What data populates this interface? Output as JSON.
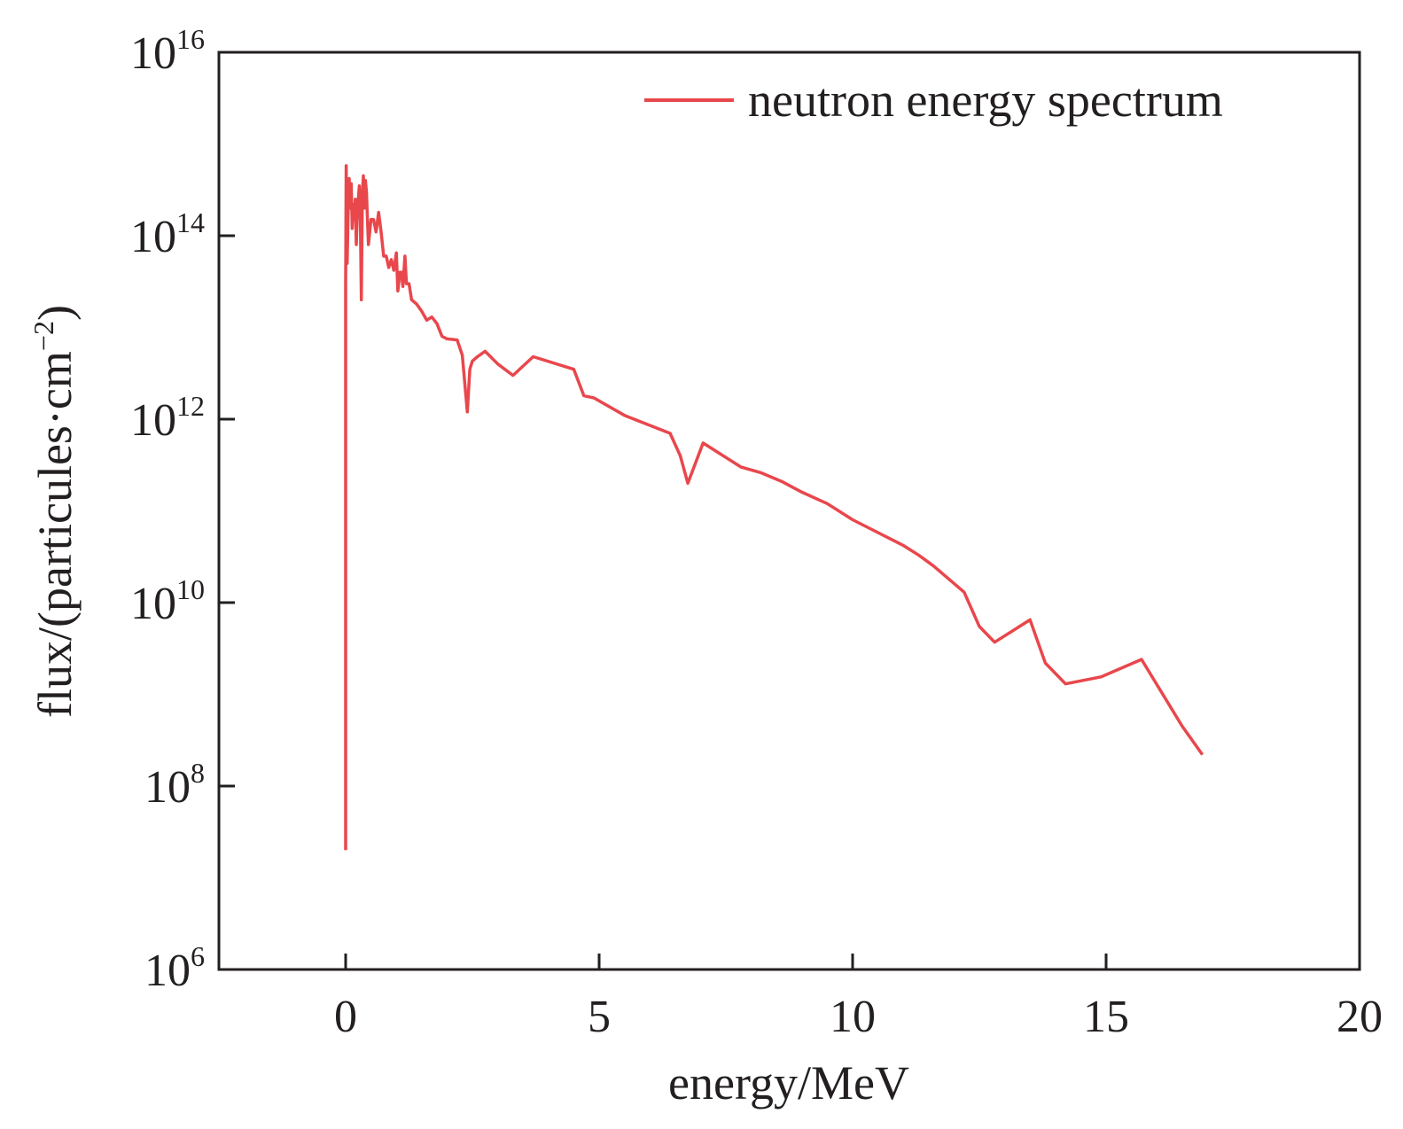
{
  "chart_data": {
    "type": "line",
    "title": "",
    "xlabel": "energy/MeV",
    "ylabel": {
      "prefix": "flux/(particules·cm",
      "exponent": "−2",
      "suffix": ")"
    },
    "xlim": [
      -2.5,
      20
    ],
    "ylim": [
      1000000.0,
      1e+16
    ],
    "yscale": "log",
    "grid": false,
    "legend_position": "top-right",
    "x_ticks": [
      {
        "value": 0,
        "label": "0"
      },
      {
        "value": 5,
        "label": "5"
      },
      {
        "value": 10,
        "label": "10"
      },
      {
        "value": 15,
        "label": "15"
      },
      {
        "value": 20,
        "label": "20"
      }
    ],
    "y_ticks": [
      {
        "value": 1000000.0,
        "base": "10",
        "exponent": "6"
      },
      {
        "value": 100000000.0,
        "base": "10",
        "exponent": "8"
      },
      {
        "value": 10000000000.0,
        "base": "10",
        "exponent": "10"
      },
      {
        "value": 1000000000000.0,
        "base": "10",
        "exponent": "12"
      },
      {
        "value": 100000000000000.0,
        "base": "10",
        "exponent": "14"
      },
      {
        "value": 1e+16,
        "base": "10",
        "exponent": "16"
      }
    ],
    "series": [
      {
        "name": "neutron energy spectrum",
        "color": "#e8474c",
        "x": [
          0.0,
          0.0,
          0.01,
          0.03,
          0.05,
          0.07,
          0.09,
          0.11,
          0.13,
          0.15,
          0.17,
          0.19,
          0.21,
          0.23,
          0.25,
          0.27,
          0.29,
          0.31,
          0.33,
          0.35,
          0.37,
          0.39,
          0.41,
          0.43,
          0.45,
          0.5,
          0.55,
          0.6,
          0.65,
          0.7,
          0.75,
          0.8,
          0.85,
          0.9,
          0.95,
          1.0,
          1.03,
          1.07,
          1.1,
          1.13,
          1.17,
          1.2,
          1.25,
          1.3,
          1.4,
          1.5,
          1.6,
          1.7,
          1.8,
          1.9,
          2.0,
          2.2,
          2.3,
          2.4,
          2.45,
          2.5,
          2.6,
          2.75,
          3.0,
          3.3,
          3.7,
          4.5,
          4.7,
          4.9,
          5.5,
          6.4,
          6.6,
          6.75,
          7.05,
          7.8,
          8.2,
          8.6,
          9.0,
          9.5,
          10.0,
          10.5,
          11.0,
          11.3,
          11.6,
          12.2,
          12.5,
          12.8,
          13.5,
          13.8,
          14.2,
          14.9,
          15.7,
          16.5,
          16.9
        ],
        "y": [
          20000000.0,
          30000000000000.0,
          580000000000000.0,
          50000000000000.0,
          200000000000000.0,
          420000000000000.0,
          200000000000000.0,
          370000000000000.0,
          120000000000000.0,
          220000000000000.0,
          150000000000000.0,
          250000000000000.0,
          80000000000000.0,
          180000000000000.0,
          250000000000000.0,
          350000000000000.0,
          150000000000000.0,
          20000000000000.0,
          300000000000000.0,
          450000000000000.0,
          200000000000000.0,
          400000000000000.0,
          300000000000000.0,
          150000000000000.0,
          80000000000000.0,
          150000000000000.0,
          150000000000000.0,
          110000000000000.0,
          180000000000000.0,
          110000000000000.0,
          60000000000000.0,
          60000000000000.0,
          45000000000000.0,
          55000000000000.0,
          42000000000000.0,
          65000000000000.0,
          25000000000000.0,
          40000000000000.0,
          40000000000000.0,
          28000000000000.0,
          60000000000000.0,
          30000000000000.0,
          30000000000000.0,
          20000000000000.0,
          18000000000000.0,
          15000000000000.0,
          12000000000000.0,
          13000000000000.0,
          11000000000000.0,
          8000000000000.0,
          7500000000000.0,
          7300000000000.0,
          5000000000000.0,
          1200000000000.0,
          3500000000000.0,
          4300000000000.0,
          4800000000000.0,
          5500000000000.0,
          4000000000000.0,
          3000000000000.0,
          4800000000000.0,
          3500000000000.0,
          1800000000000.0,
          1700000000000.0,
          1100000000000.0,
          700000000000.0,
          400000000000.0,
          200000000000.0,
          550000000000.0,
          300000000000.0,
          260000000000.0,
          210000000000.0,
          160000000000.0,
          120000000000.0,
          80000000000.0,
          58000000000.0,
          42000000000.0,
          33000000000.0,
          25000000000.0,
          13000000000.0,
          5500000000.0,
          3700000000.0,
          6500000000.0,
          2200000000.0,
          1300000000.0,
          1550000000.0,
          2400000000.0,
          450000000.0,
          220000000.0
        ]
      }
    ]
  }
}
